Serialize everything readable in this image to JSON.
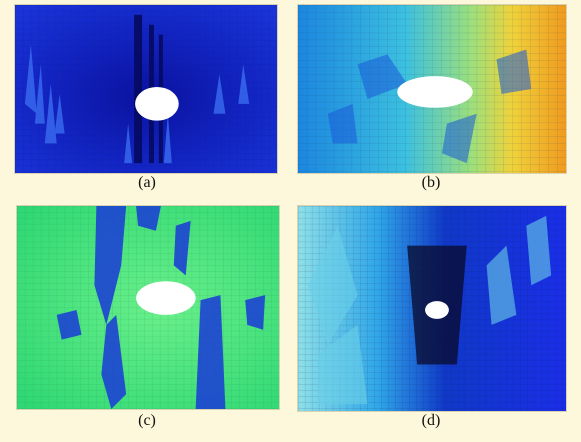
{
  "figure": {
    "panels": [
      {
        "id": "a",
        "caption": "(a)",
        "colormap": "dark-blue",
        "base_color": "#1226c8"
      },
      {
        "id": "b",
        "caption": "(b)",
        "colormap": "cyan-to-orange",
        "base_color": "#3fb8d8"
      },
      {
        "id": "c",
        "caption": "(c)",
        "colormap": "green",
        "base_color": "#3fe07a"
      },
      {
        "id": "d",
        "caption": "(d)",
        "colormap": "blue-cyan",
        "base_color": "#1a3fe0"
      }
    ]
  }
}
